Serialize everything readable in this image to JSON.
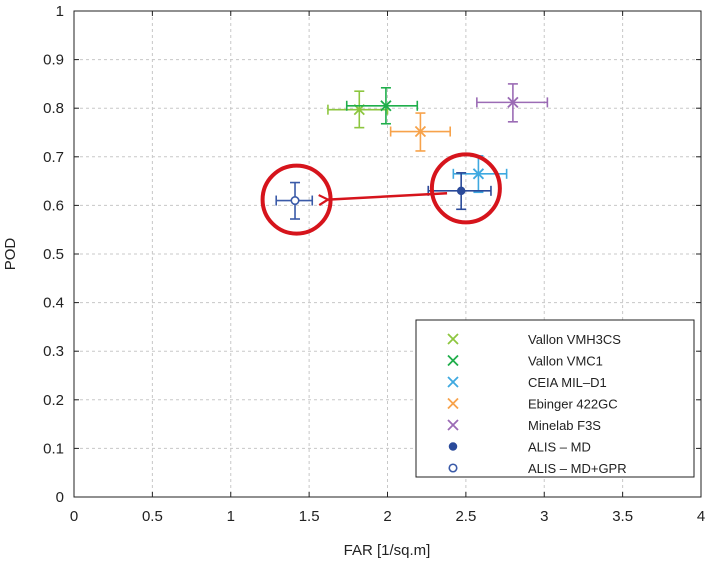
{
  "chart_data": {
    "type": "scatter",
    "title": "",
    "xlabel": "FAR [1/sq.m]",
    "ylabel": "POD",
    "xlim": [
      0,
      4
    ],
    "ylim": [
      0,
      1
    ],
    "xticks": [
      "0",
      "0.5",
      "1",
      "1.5",
      "2",
      "2.5",
      "3",
      "3.5",
      "4"
    ],
    "yticks": [
      "0",
      "0.1",
      "0.2",
      "0.3",
      "0.4",
      "0.5",
      "0.6",
      "0.7",
      "0.8",
      "0.9",
      "1"
    ],
    "grid": true,
    "legend_position": "bottom-right",
    "series": [
      {
        "name": "Vallon VMH3CS",
        "marker": "x",
        "color": "#8dc63f",
        "x": 1.82,
        "y": 0.797,
        "xerr": [
          1.62,
          2.0
        ],
        "yerr": [
          0.76,
          0.835
        ]
      },
      {
        "name": "Vallon VMC1",
        "marker": "x",
        "color": "#1fae4b",
        "x": 1.99,
        "y": 0.805,
        "xerr": [
          1.74,
          2.19
        ],
        "yerr": [
          0.768,
          0.842
        ]
      },
      {
        "name": "CEIA MIL–D1",
        "marker": "x",
        "color": "#3fa9e0",
        "x": 2.58,
        "y": 0.665,
        "xerr": [
          2.42,
          2.76
        ],
        "yerr": [
          0.627,
          0.702
        ]
      },
      {
        "name": "Ebinger 422GC",
        "marker": "x",
        "color": "#f7a24a",
        "x": 2.21,
        "y": 0.752,
        "xerr": [
          2.02,
          2.4
        ],
        "yerr": [
          0.712,
          0.79
        ]
      },
      {
        "name": "Minelab F3S",
        "marker": "x",
        "color": "#9b6bb5",
        "x": 2.8,
        "y": 0.812,
        "xerr": [
          2.57,
          3.02
        ],
        "yerr": [
          0.772,
          0.85
        ]
      },
      {
        "name": "ALIS – MD",
        "marker": "filled-circle",
        "color": "#2a4a9a",
        "x": 2.47,
        "y": 0.63,
        "xerr": [
          2.26,
          2.66
        ],
        "yerr": [
          0.592,
          0.667
        ]
      },
      {
        "name": "ALIS – MD+GPR",
        "marker": "open-circle",
        "color": "#3a5aa8",
        "x": 1.41,
        "y": 0.61,
        "xerr": [
          1.29,
          1.52
        ],
        "yerr": [
          0.572,
          0.647
        ]
      }
    ],
    "annotations": [
      {
        "type": "circle",
        "color": "#d6141c",
        "cx": 1.42,
        "cy": 0.612
      },
      {
        "type": "circle",
        "color": "#d6141c",
        "cx": 2.5,
        "cy": 0.635
      },
      {
        "type": "arrow",
        "color": "#d6141c",
        "from": [
          2.38,
          0.625
        ],
        "to": [
          1.62,
          0.612
        ]
      }
    ]
  }
}
